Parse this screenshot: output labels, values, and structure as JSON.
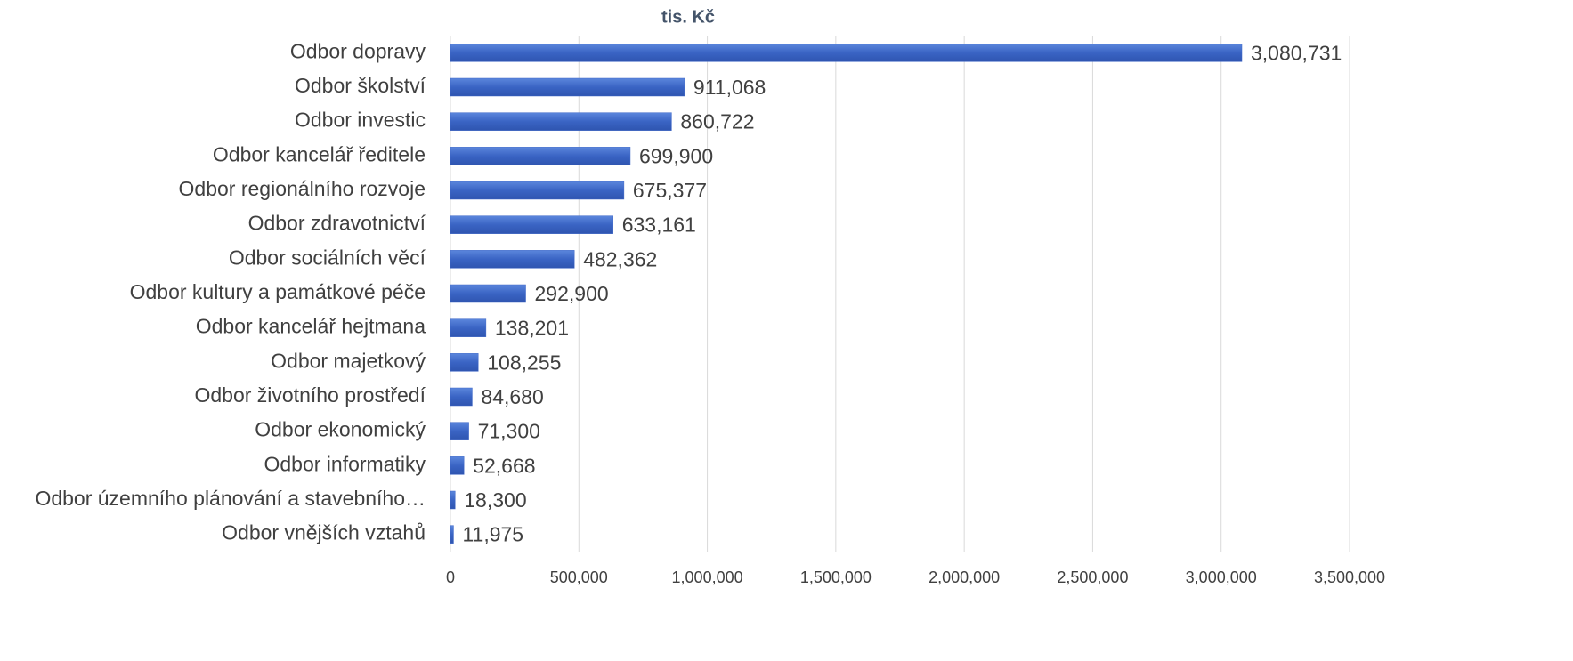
{
  "chart_data": {
    "type": "hbar",
    "title": "tis. Kč",
    "categories": [
      "Odbor dopravy",
      "Odbor školství",
      "Odbor investic",
      "Odbor kancelář ředitele",
      "Odbor regionálního rozvoje",
      "Odbor zdravotnictví",
      "Odbor sociálních věcí",
      "Odbor kultury a památkové péče",
      "Odbor kancelář hejtmana",
      "Odbor majetkový",
      "Odbor životního prostředí",
      "Odbor ekonomický",
      "Odbor informatiky",
      "Odbor územního plánování a stavebního…",
      "Odbor vnějších vztahů"
    ],
    "values": [
      3080731,
      911068,
      860722,
      699900,
      675377,
      633161,
      482362,
      292900,
      138201,
      108255,
      84680,
      71300,
      52668,
      18300,
      11975
    ],
    "value_labels": [
      "3,080,731",
      "911,068",
      "860,722",
      "699,900",
      "675,377",
      "633,161",
      "482,362",
      "292,900",
      "138,201",
      "108,255",
      "84,680",
      "71,300",
      "52,668",
      "18,300",
      "11,975"
    ],
    "color": "#4169c8",
    "xlim": [
      0,
      3500000
    ],
    "xticks": [
      0,
      {
        "value": 500000,
        "label": "500,000"
      },
      {
        "value": 1000000,
        "label": "1,000,000"
      },
      {
        "value": 1500000,
        "label": "1,500,000"
      },
      {
        "value": 2000000,
        "label": "2,000,000"
      },
      {
        "value": 2500000,
        "label": "2,500,000"
      },
      {
        "value": 3000000,
        "label": "3,000,000"
      },
      {
        "value": 3500000,
        "label": "3,500,000"
      }
    ],
    "grid": true
  }
}
